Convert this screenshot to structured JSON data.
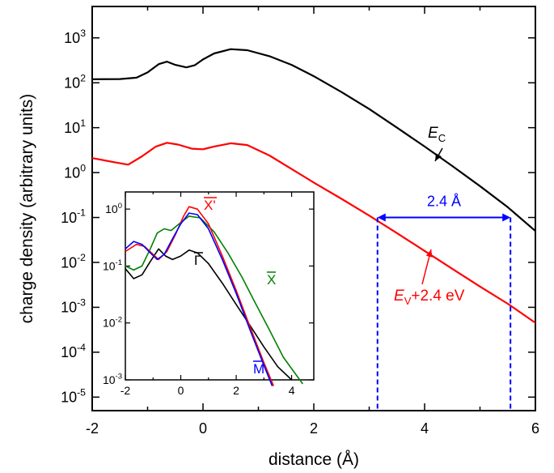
{
  "chart_data": [
    {
      "type": "line",
      "xlabel": "distance (Å)",
      "ylabel": "charge density (arbitrary units)",
      "yscale": "log",
      "xlim": [
        -2,
        6
      ],
      "ylim": [
        5e-06,
        5000
      ],
      "xticks": [
        -2,
        0,
        2,
        4,
        6
      ],
      "xtick_labels": [
        "-2",
        "0",
        "2",
        "4",
        "6"
      ],
      "yticks": [
        {
          "value": 1000,
          "base": "10",
          "exp": "3"
        },
        {
          "value": 100,
          "base": "10",
          "exp": "2"
        },
        {
          "value": 10,
          "base": "10",
          "exp": "1"
        },
        {
          "value": 1,
          "base": "10",
          "exp": "0"
        },
        {
          "value": 0.1,
          "base": "10",
          "exp": "-1"
        },
        {
          "value": 0.01,
          "base": "10",
          "exp": "-2"
        },
        {
          "value": 0.001,
          "base": "10",
          "exp": "-3"
        },
        {
          "value": 0.0001,
          "base": "10",
          "exp": "-4"
        },
        {
          "value": 1e-05,
          "base": "10",
          "exp": "-5"
        }
      ],
      "grid": false,
      "series": [
        {
          "label_main": "E",
          "label_sub": "C",
          "label_rest": "",
          "color": "#000000",
          "points": [
            [
              -2,
              120
            ],
            [
              -1.5,
              121
            ],
            [
              -1.2,
              130
            ],
            [
              -1.0,
              170
            ],
            [
              -0.8,
              260
            ],
            [
              -0.65,
              295
            ],
            [
              -0.5,
              250
            ],
            [
              -0.3,
              220
            ],
            [
              -0.15,
              245
            ],
            [
              0,
              330
            ],
            [
              0.2,
              450
            ],
            [
              0.5,
              560
            ],
            [
              0.8,
              530
            ],
            [
              1.2,
              390
            ],
            [
              1.6,
              250
            ],
            [
              2.0,
              140
            ],
            [
              2.5,
              62
            ],
            [
              3.0,
              26
            ],
            [
              3.5,
              10
            ],
            [
              4.0,
              3.8
            ],
            [
              4.5,
              1.4
            ],
            [
              5.0,
              0.5
            ],
            [
              5.5,
              0.17
            ],
            [
              6.0,
              0.05
            ]
          ]
        },
        {
          "label_main": "E",
          "label_sub": "V",
          "label_rest": "+2.4 eV",
          "color": "#ff0000",
          "points": [
            [
              -2,
              2.1
            ],
            [
              -1.6,
              1.7
            ],
            [
              -1.35,
              1.5
            ],
            [
              -1.1,
              2.3
            ],
            [
              -0.85,
              3.8
            ],
            [
              -0.65,
              4.6
            ],
            [
              -0.45,
              4.2
            ],
            [
              -0.2,
              3.4
            ],
            [
              0,
              3.3
            ],
            [
              0.2,
              3.8
            ],
            [
              0.5,
              4.5
            ],
            [
              0.8,
              4.1
            ],
            [
              1.2,
              2.4
            ],
            [
              1.6,
              1.2
            ],
            [
              2.0,
              0.6
            ],
            [
              2.5,
              0.26
            ],
            [
              3.0,
              0.11
            ],
            [
              3.5,
              0.045
            ],
            [
              4.0,
              0.018
            ],
            [
              4.5,
              0.0072
            ],
            [
              5.0,
              0.0029
            ],
            [
              5.5,
              0.0012
            ],
            [
              6.0,
              0.00045
            ]
          ]
        }
      ],
      "annotations": {
        "arrow_label": "2.4 Å",
        "arrow_from_x": 3.15,
        "arrow_to_x": 5.55,
        "arrow_y": 0.1,
        "arrow_color": "#0000ff"
      }
    },
    {
      "type": "line",
      "inset": true,
      "yscale": "log",
      "xlim": [
        -2,
        4.8
      ],
      "ylim": [
        0.001,
        2
      ],
      "xticks": [
        -2,
        0,
        2,
        4
      ],
      "xtick_labels": [
        "-2",
        "0",
        "2",
        "4"
      ],
      "yticks": [
        {
          "value": 1,
          "base": "10",
          "exp": "0"
        },
        {
          "value": 0.1,
          "base": "10",
          "exp": "-1"
        },
        {
          "value": 0.01,
          "base": "10",
          "exp": "-2"
        },
        {
          "value": 0.001,
          "base": "10",
          "exp": "-3"
        }
      ],
      "series": [
        {
          "label": "Γ",
          "color": "#000000",
          "points": [
            [
              -2,
              0.09
            ],
            [
              -1.7,
              0.06
            ],
            [
              -1.4,
              0.07
            ],
            [
              -1.1,
              0.12
            ],
            [
              -0.8,
              0.2
            ],
            [
              -0.55,
              0.15
            ],
            [
              -0.3,
              0.13
            ],
            [
              0,
              0.15
            ],
            [
              0.3,
              0.19
            ],
            [
              0.6,
              0.17
            ],
            [
              1.0,
              0.11
            ],
            [
              1.5,
              0.05
            ],
            [
              2.0,
              0.021
            ],
            [
              2.5,
              0.009
            ],
            [
              3.0,
              0.0038
            ],
            [
              3.5,
              0.0017
            ],
            [
              4.0,
              0.001
            ]
          ]
        },
        {
          "label": "X",
          "color": "#008000",
          "points": [
            [
              -2,
              0.1
            ],
            [
              -1.7,
              0.085
            ],
            [
              -1.4,
              0.1
            ],
            [
              -1.1,
              0.2
            ],
            [
              -0.85,
              0.38
            ],
            [
              -0.6,
              0.45
            ],
            [
              -0.35,
              0.42
            ],
            [
              0,
              0.58
            ],
            [
              0.3,
              0.75
            ],
            [
              0.7,
              0.7
            ],
            [
              1.2,
              0.4
            ],
            [
              1.7,
              0.17
            ],
            [
              2.2,
              0.065
            ],
            [
              2.7,
              0.022
            ],
            [
              3.2,
              0.0075
            ],
            [
              3.7,
              0.0025
            ],
            [
              4.4,
              0.00085
            ]
          ]
        },
        {
          "label": "X'",
          "color": "#ff0000",
          "points": [
            [
              -2,
              0.18
            ],
            [
              -1.6,
              0.24
            ],
            [
              -1.3,
              0.22
            ],
            [
              -1.0,
              0.16
            ],
            [
              -0.8,
              0.13
            ],
            [
              -0.5,
              0.18
            ],
            [
              -0.2,
              0.35
            ],
            [
              0.1,
              0.75
            ],
            [
              0.3,
              1.1
            ],
            [
              0.6,
              1.0
            ],
            [
              1.0,
              0.55
            ],
            [
              1.5,
              0.15
            ],
            [
              2.0,
              0.037
            ],
            [
              2.5,
              0.0085
            ],
            [
              3.0,
              0.002
            ],
            [
              3.35,
              0.00078
            ]
          ]
        },
        {
          "label": "M",
          "color": "#0000ff",
          "points": [
            [
              -2,
              0.2
            ],
            [
              -1.7,
              0.27
            ],
            [
              -1.4,
              0.24
            ],
            [
              -1.1,
              0.17
            ],
            [
              -0.85,
              0.13
            ],
            [
              -0.6,
              0.16
            ],
            [
              -0.3,
              0.3
            ],
            [
              0,
              0.55
            ],
            [
              0.3,
              0.85
            ],
            [
              0.6,
              0.8
            ],
            [
              1.0,
              0.45
            ],
            [
              1.5,
              0.13
            ],
            [
              2.0,
              0.033
            ],
            [
              2.5,
              0.0075
            ],
            [
              3.0,
              0.0018
            ],
            [
              3.3,
              0.00078
            ]
          ]
        }
      ]
    }
  ]
}
